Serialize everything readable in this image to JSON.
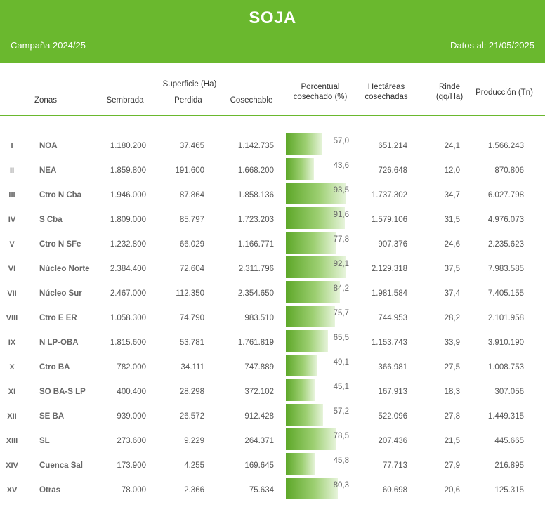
{
  "banner": {
    "title": "SOJA",
    "campaign": "Campaña 2024/25",
    "date": "Datos al: 21/05/2025",
    "color": "#6ab82e"
  },
  "headers": {
    "zonas": "Zonas",
    "superficie": "Superficie (Ha)",
    "sembrada": "Sembrada",
    "perdida": "Perdida",
    "cosechable": "Cosechable",
    "porcentual_1": "Porcentual",
    "porcentual_2": "cosechado (%)",
    "hectareas_1": "Hectáreas",
    "hectareas_2": "cosechadas",
    "rinde_1": "Rinde",
    "rinde_2": "(qq/Ha)",
    "produccion": "Producción (Tn)"
  },
  "rows": [
    {
      "num": "I",
      "zona": "NOA",
      "sembrada": "1.180.200",
      "perdida": "37.465",
      "cosechable": "1.142.735",
      "pct_label": "57,0",
      "pct": 57.0,
      "hectareas": "651.214",
      "rinde": "24,1",
      "produccion": "1.566.243"
    },
    {
      "num": "II",
      "zona": "NEA",
      "sembrada": "1.859.800",
      "perdida": "191.600",
      "cosechable": "1.668.200",
      "pct_label": "43,6",
      "pct": 43.6,
      "hectareas": "726.648",
      "rinde": "12,0",
      "produccion": "870.806"
    },
    {
      "num": "III",
      "zona": "Ctro N Cba",
      "sembrada": "1.946.000",
      "perdida": "87.864",
      "cosechable": "1.858.136",
      "pct_label": "93,5",
      "pct": 93.5,
      "hectareas": "1.737.302",
      "rinde": "34,7",
      "produccion": "6.027.798"
    },
    {
      "num": "IV",
      "zona": "S Cba",
      "sembrada": "1.809.000",
      "perdida": "85.797",
      "cosechable": "1.723.203",
      "pct_label": "91,6",
      "pct": 91.6,
      "hectareas": "1.579.106",
      "rinde": "31,5",
      "produccion": "4.976.073"
    },
    {
      "num": "V",
      "zona": "Ctro N SFe",
      "sembrada": "1.232.800",
      "perdida": "66.029",
      "cosechable": "1.166.771",
      "pct_label": "77,8",
      "pct": 77.8,
      "hectareas": "907.376",
      "rinde": "24,6",
      "produccion": "2.235.623"
    },
    {
      "num": "VI",
      "zona": "Núcleo Norte",
      "sembrada": "2.384.400",
      "perdida": "72.604",
      "cosechable": "2.311.796",
      "pct_label": "92,1",
      "pct": 92.1,
      "hectareas": "2.129.318",
      "rinde": "37,5",
      "produccion": "7.983.585"
    },
    {
      "num": "VII",
      "zona": "Núcleo Sur",
      "sembrada": "2.467.000",
      "perdida": "112.350",
      "cosechable": "2.354.650",
      "pct_label": "84,2",
      "pct": 84.2,
      "hectareas": "1.981.584",
      "rinde": "37,4",
      "produccion": "7.405.155"
    },
    {
      "num": "VIII",
      "zona": "Ctro E ER",
      "sembrada": "1.058.300",
      "perdida": "74.790",
      "cosechable": "983.510",
      "pct_label": "75,7",
      "pct": 75.7,
      "hectareas": "744.953",
      "rinde": "28,2",
      "produccion": "2.101.958"
    },
    {
      "num": "IX",
      "zona": "N LP-OBA",
      "sembrada": "1.815.600",
      "perdida": "53.781",
      "cosechable": "1.761.819",
      "pct_label": "65,5",
      "pct": 65.5,
      "hectareas": "1.153.743",
      "rinde": "33,9",
      "produccion": "3.910.190"
    },
    {
      "num": "X",
      "zona": "Ctro BA",
      "sembrada": "782.000",
      "perdida": "34.111",
      "cosechable": "747.889",
      "pct_label": "49,1",
      "pct": 49.1,
      "hectareas": "366.981",
      "rinde": "27,5",
      "produccion": "1.008.753"
    },
    {
      "num": "XI",
      "zona": "SO BA-S LP",
      "sembrada": "400.400",
      "perdida": "28.298",
      "cosechable": "372.102",
      "pct_label": "45,1",
      "pct": 45.1,
      "hectareas": "167.913",
      "rinde": "18,3",
      "produccion": "307.056"
    },
    {
      "num": "XII",
      "zona": "SE BA",
      "sembrada": "939.000",
      "perdida": "26.572",
      "cosechable": "912.428",
      "pct_label": "57,2",
      "pct": 57.2,
      "hectareas": "522.096",
      "rinde": "27,8",
      "produccion": "1.449.315"
    },
    {
      "num": "XIII",
      "zona": "SL",
      "sembrada": "273.600",
      "perdida": "9.229",
      "cosechable": "264.371",
      "pct_label": "78,5",
      "pct": 78.5,
      "hectareas": "207.436",
      "rinde": "21,5",
      "produccion": "445.665"
    },
    {
      "num": "XIV",
      "zona": "Cuenca Sal",
      "sembrada": "173.900",
      "perdida": "4.255",
      "cosechable": "169.645",
      "pct_label": "45,8",
      "pct": 45.8,
      "hectareas": "77.713",
      "rinde": "27,9",
      "produccion": "216.895"
    },
    {
      "num": "XV",
      "zona": "Otras",
      "sembrada": "78.000",
      "perdida": "2.366",
      "cosechable": "75.634",
      "pct_label": "80,3",
      "pct": 80.3,
      "hectareas": "60.698",
      "rinde": "20,6",
      "produccion": "125.315"
    }
  ]
}
